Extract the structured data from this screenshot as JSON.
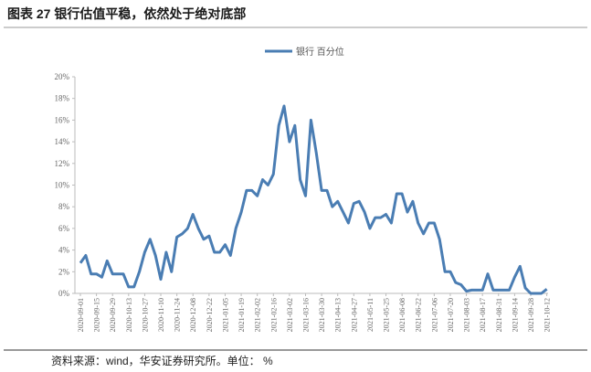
{
  "chart_data": {
    "type": "line",
    "title": "图表 27 银行估值平稳，依然处于绝对底部",
    "source": "资料来源：wind，华安证券研究所。单位： %",
    "categories": [
      "2020-09-01",
      null,
      null,
      "2020-09-15",
      null,
      null,
      "2020-09-29",
      null,
      null,
      "2020-10-13",
      null,
      null,
      "2020-10-27",
      null,
      null,
      "2020-11-10",
      null,
      null,
      "2020-11-24",
      null,
      null,
      "2020-12-08",
      null,
      null,
      "2020-12-22",
      null,
      null,
      "2021-01-05",
      null,
      null,
      "2021-01-19",
      null,
      null,
      "2021-02-02",
      null,
      null,
      "2021-02-16",
      null,
      null,
      "2021-03-02",
      null,
      null,
      "2021-03-16",
      null,
      null,
      "2021-03-30",
      null,
      null,
      "2021-04-13",
      null,
      null,
      "2021-04-27",
      null,
      null,
      "2021-05-11",
      null,
      null,
      "2021-05-25",
      null,
      null,
      "2021-06-08",
      null,
      null,
      "2021-06-22",
      null,
      null,
      "2021-07-06",
      null,
      null,
      "2021-07-20",
      null,
      null,
      "2021-08-03",
      null,
      null,
      "2021-08-17",
      null,
      null,
      "2021-08-31",
      null,
      null,
      "2021-09-14",
      null,
      null,
      "2021-09-28",
      null,
      null,
      "2021-10-12"
    ],
    "series": [
      {
        "name": "银行 百分位",
        "color": "#4a7db3",
        "values": [
          2.8,
          3.5,
          1.8,
          1.8,
          1.5,
          3.0,
          1.8,
          1.8,
          1.8,
          0.6,
          0.6,
          2.0,
          3.8,
          5.0,
          3.5,
          1.3,
          3.8,
          2.0,
          5.2,
          5.5,
          6.0,
          7.3,
          6.0,
          5.0,
          5.3,
          3.8,
          3.8,
          4.5,
          3.5,
          6.0,
          7.5,
          9.5,
          9.5,
          9.0,
          10.5,
          10.0,
          11.0,
          15.5,
          17.3,
          14.0,
          15.5,
          10.5,
          9.0,
          16.0,
          13.0,
          9.5,
          9.5,
          8.0,
          8.5,
          7.5,
          6.5,
          8.3,
          8.5,
          7.5,
          6.0,
          7.0,
          7.0,
          7.3,
          6.5,
          9.2,
          9.2,
          7.5,
          8.5,
          6.5,
          5.5,
          6.5,
          6.5,
          5.0,
          2.0,
          2.0,
          1.0,
          0.8,
          0.2,
          0.3,
          0.3,
          0.3,
          1.8,
          0.3,
          0.3,
          0.3,
          0.3,
          1.5,
          2.5,
          0.5,
          0,
          0,
          0,
          0.4
        ]
      }
    ],
    "ylim": [
      0,
      20
    ],
    "yticks": [
      {
        "value": 0,
        "label": "0%"
      },
      {
        "value": 2,
        "label": "2%"
      },
      {
        "value": 4,
        "label": "4%"
      },
      {
        "value": 6,
        "label": "6%"
      },
      {
        "value": 8,
        "label": "8%"
      },
      {
        "value": 10,
        "label": "10%"
      },
      {
        "value": 12,
        "label": "12%"
      },
      {
        "value": 14,
        "label": "14%"
      },
      {
        "value": 16,
        "label": "16%"
      },
      {
        "value": 18,
        "label": "18%"
      },
      {
        "value": 20,
        "label": "20%"
      }
    ],
    "legend": "top"
  }
}
